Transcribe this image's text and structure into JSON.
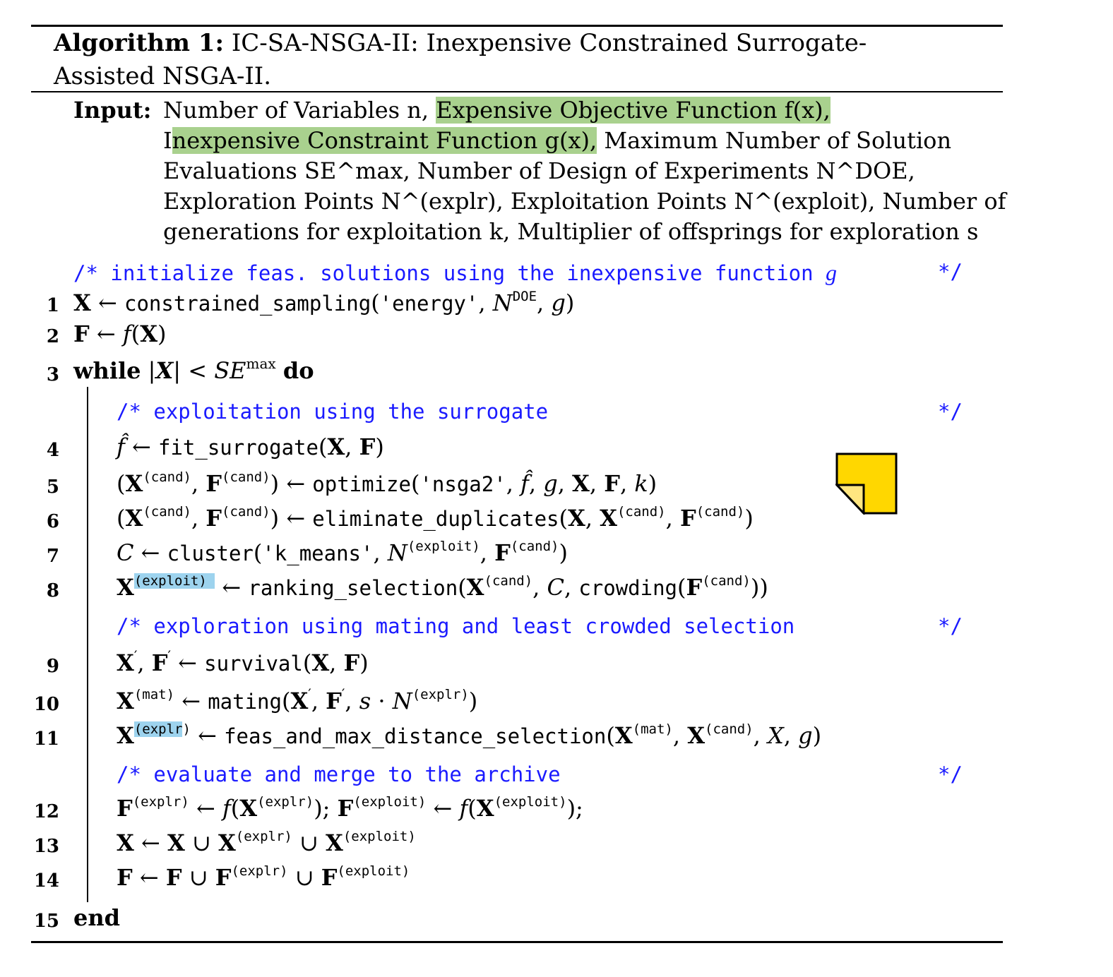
{
  "algorithm": {
    "label": "Algorithm 1:",
    "title_line1": "IC-SA-NSGA-II: Inexpensive Constrained Surrogate-",
    "title_line2": "Assisted NSGA-II."
  },
  "input": {
    "label": "Input:",
    "line1_plain": "Number of Variables n, ",
    "line1_hl": "Expensive Objective Function f(x),",
    "line2_pre": "I",
    "line2_hl": "nexpensive Constraint Function g(x),",
    "line2_post": " Maximum Number of Solution",
    "line3": "Evaluations SE^max, Number of Design of Experiments N^DOE,",
    "line4": "Exploration Points N^(explr), Exploitation Points N^(exploit), Number of",
    "line5": "generations for exploitation k, Multiplier of offsprings for exploration s"
  },
  "comments": {
    "c1": "/* initialize feas. solutions using the inexpensive function",
    "c1_var": "g",
    "c2": "/* exploitation using the surrogate",
    "c3": "/* exploration using mating and least crowded selection",
    "c4": "/* evaluate and merge to the archive",
    "end": "*/"
  },
  "lines": {
    "n1": "1",
    "n2": "2",
    "n3": "3",
    "n4": "4",
    "n5": "5",
    "n6": "6",
    "n7": "7",
    "n8": "8",
    "n9": "9",
    "n10": "10",
    "n11": "11",
    "n12": "12",
    "n13": "13",
    "n14": "14",
    "n15": "15"
  },
  "functions": {
    "constrained_sampling": "constrained_sampling",
    "energy": "'energy'",
    "fit_surrogate": "fit_surrogate",
    "optimize": "optimize",
    "nsga2": "'nsga2'",
    "eliminate_duplicates": "eliminate_duplicates",
    "cluster": "cluster",
    "k_means": "'k_means'",
    "ranking_selection": "ranking_selection",
    "crowding": "crowding",
    "survival": "survival",
    "mating": "mating",
    "feas_selection": "feas_and_max_distance_selection"
  },
  "keywords": {
    "while": "while",
    "do": "do",
    "end": "end"
  },
  "note_icon_color": "#ffd700",
  "highlight_green": "#a9d18e",
  "highlight_blue": "#9dd3ee",
  "comment_color": "#1a1aff"
}
